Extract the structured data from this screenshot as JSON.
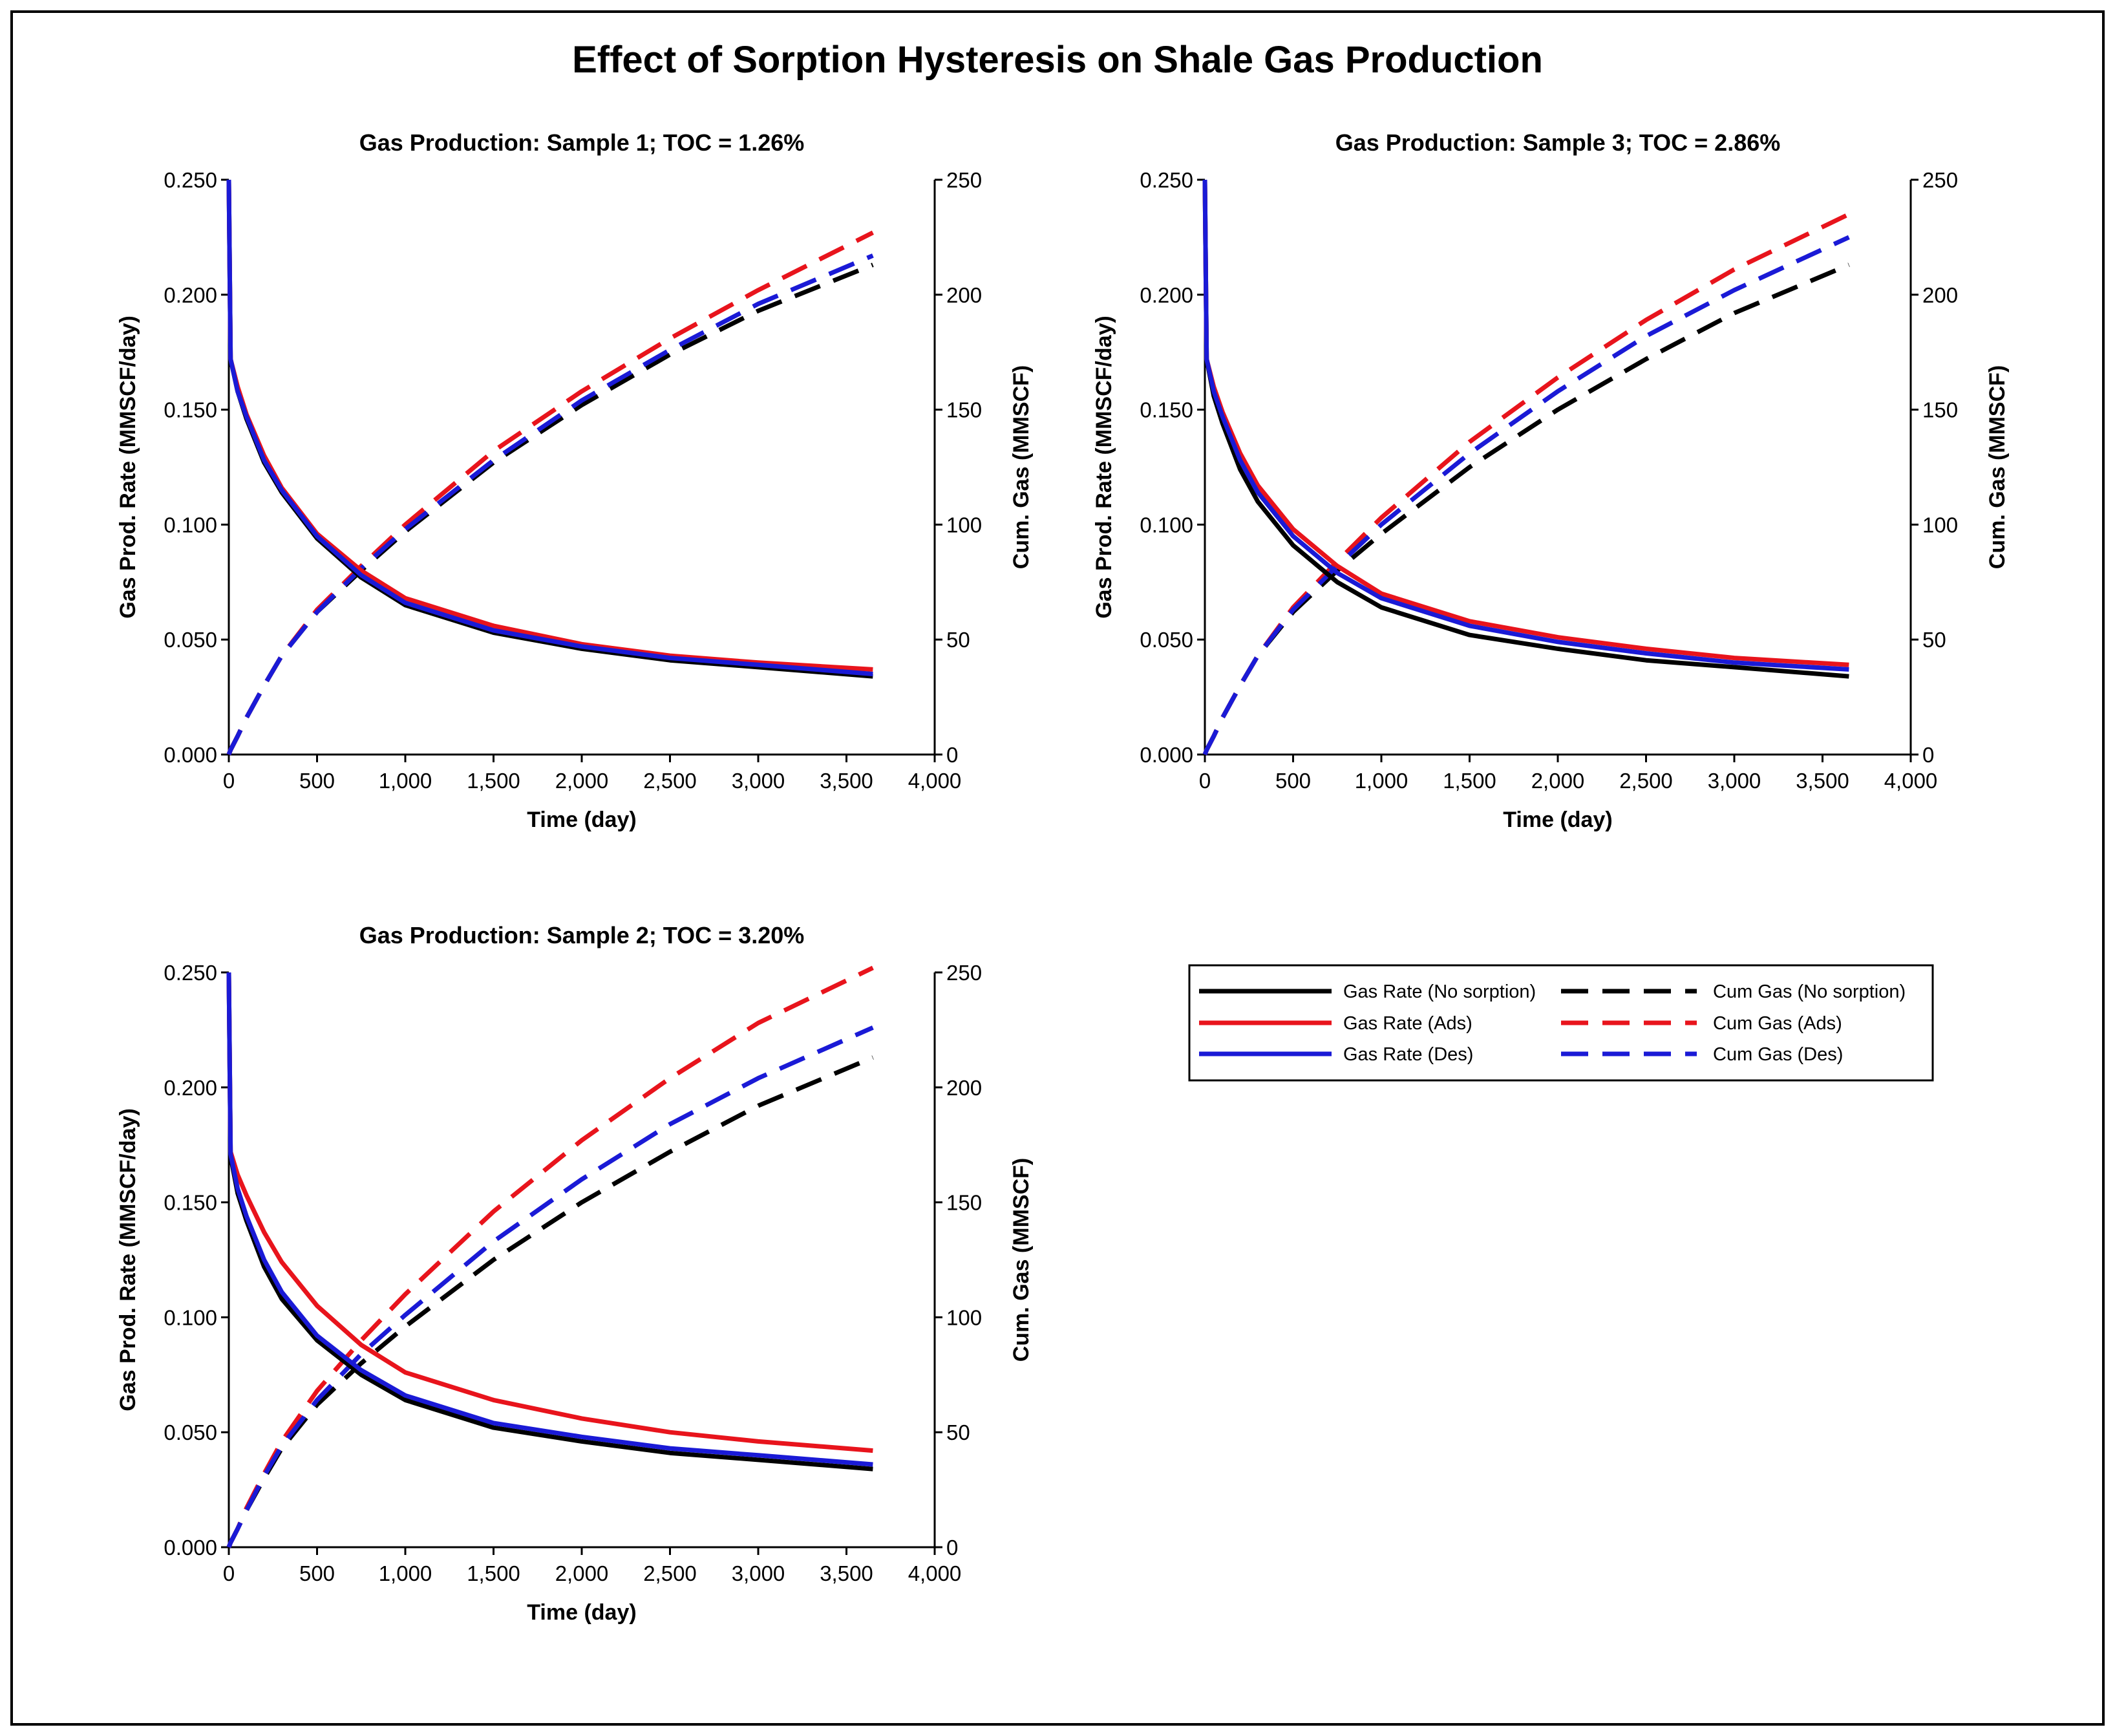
{
  "figure_title": "Effect of Sorption Hysteresis on Shale Gas Production",
  "colors": {
    "no_sorption": "#000000",
    "ads": "#e8141c",
    "des": "#1a1ad6"
  },
  "legend": {
    "items": [
      {
        "label": "Gas Rate (No sorption)",
        "color": "#000000",
        "dashed": false
      },
      {
        "label": "Cum Gas (No sorption)",
        "color": "#000000",
        "dashed": true
      },
      {
        "label": "Gas Rate (Ads)",
        "color": "#e8141c",
        "dashed": false
      },
      {
        "label": "Cum Gas (Ads)",
        "color": "#e8141c",
        "dashed": true
      },
      {
        "label": "Gas Rate (Des)",
        "color": "#1a1ad6",
        "dashed": false
      },
      {
        "label": "Cum Gas (Des)",
        "color": "#1a1ad6",
        "dashed": true
      }
    ]
  },
  "chart_data": [
    {
      "type": "line",
      "title": "Gas Production: Sample 1; TOC = 1.26%",
      "xlabel": "Time (day)",
      "ylabel": "Gas Prod. Rate (MMSCF/day)",
      "y2label": "Cum. Gas (MMSCF)",
      "xlim": [
        0,
        4000
      ],
      "ylim": [
        0,
        0.25
      ],
      "y2lim": [
        0,
        250
      ],
      "xticks": [
        "0",
        "500",
        "1,000",
        "1,500",
        "2,000",
        "2,500",
        "3,000",
        "3,500",
        "4,000"
      ],
      "yticks": [
        "0.000",
        "0.050",
        "0.100",
        "0.150",
        "0.200",
        "0.250"
      ],
      "y2ticks": [
        "0",
        "50",
        "100",
        "150",
        "200",
        "250"
      ],
      "x": [
        0,
        10,
        50,
        100,
        200,
        300,
        500,
        750,
        1000,
        1500,
        2000,
        2500,
        3000,
        3650
      ],
      "series": [
        {
          "name": "Gas Rate (No sorption)",
          "axis": "left",
          "style": "solid",
          "color": "#000000",
          "values": [
            0.25,
            0.172,
            0.158,
            0.146,
            0.127,
            0.114,
            0.094,
            0.077,
            0.065,
            0.053,
            0.046,
            0.041,
            0.038,
            0.034
          ]
        },
        {
          "name": "Gas Rate (Ads)",
          "axis": "left",
          "style": "solid",
          "color": "#e8141c",
          "values": [
            0.25,
            0.172,
            0.16,
            0.148,
            0.13,
            0.116,
            0.096,
            0.08,
            0.068,
            0.056,
            0.048,
            0.043,
            0.04,
            0.037
          ]
        },
        {
          "name": "Gas Rate (Des)",
          "axis": "left",
          "style": "solid",
          "color": "#1a1ad6",
          "values": [
            0.25,
            0.172,
            0.158,
            0.147,
            0.128,
            0.115,
            0.095,
            0.078,
            0.066,
            0.054,
            0.047,
            0.042,
            0.039,
            0.035
          ]
        },
        {
          "name": "Cum Gas (No sorption)",
          "axis": "right",
          "style": "dashed",
          "color": "#000000",
          "values": [
            0,
            2,
            8,
            16,
            30,
            43,
            62,
            80,
            97,
            127,
            152,
            174,
            193,
            213
          ]
        },
        {
          "name": "Cum Gas (Ads)",
          "axis": "right",
          "style": "dashed",
          "color": "#e8141c",
          "values": [
            0,
            2,
            8,
            16,
            30,
            43,
            63,
            82,
            100,
            132,
            158,
            181,
            202,
            227
          ]
        },
        {
          "name": "Cum Gas (Des)",
          "axis": "right",
          "style": "dashed",
          "color": "#1a1ad6",
          "values": [
            0,
            2,
            8,
            16,
            30,
            43,
            62,
            81,
            98,
            128,
            154,
            176,
            196,
            217
          ]
        }
      ]
    },
    {
      "type": "line",
      "title": "Gas Production: Sample 3; TOC = 2.86%",
      "xlabel": "Time (day)",
      "ylabel": "Gas Prod. Rate (MMSCF/day)",
      "y2label": "Cum. Gas (MMSCF)",
      "xlim": [
        0,
        4000
      ],
      "ylim": [
        0,
        0.25
      ],
      "y2lim": [
        0,
        250
      ],
      "xticks": [
        "0",
        "500",
        "1,000",
        "1,500",
        "2,000",
        "2,500",
        "3,000",
        "3,500",
        "4,000"
      ],
      "yticks": [
        "0.000",
        "0.050",
        "0.100",
        "0.150",
        "0.200",
        "0.250"
      ],
      "y2ticks": [
        "0",
        "50",
        "100",
        "150",
        "200",
        "250"
      ],
      "x": [
        0,
        10,
        50,
        100,
        200,
        300,
        500,
        750,
        1000,
        1500,
        2000,
        2500,
        3000,
        3650
      ],
      "series": [
        {
          "name": "Gas Rate (No sorption)",
          "axis": "left",
          "style": "solid",
          "color": "#000000",
          "values": [
            0.25,
            0.172,
            0.156,
            0.144,
            0.124,
            0.11,
            0.091,
            0.075,
            0.064,
            0.052,
            0.046,
            0.041,
            0.038,
            0.034
          ]
        },
        {
          "name": "Gas Rate (Ads)",
          "axis": "left",
          "style": "solid",
          "color": "#e8141c",
          "values": [
            0.25,
            0.172,
            0.16,
            0.149,
            0.131,
            0.117,
            0.098,
            0.082,
            0.07,
            0.058,
            0.051,
            0.046,
            0.042,
            0.039
          ]
        },
        {
          "name": "Gas Rate (Des)",
          "axis": "left",
          "style": "solid",
          "color": "#1a1ad6",
          "values": [
            0.25,
            0.172,
            0.158,
            0.147,
            0.128,
            0.114,
            0.095,
            0.079,
            0.068,
            0.056,
            0.049,
            0.044,
            0.04,
            0.037
          ]
        },
        {
          "name": "Cum Gas (No sorption)",
          "axis": "right",
          "style": "dashed",
          "color": "#000000",
          "values": [
            0,
            2,
            8,
            16,
            30,
            43,
            62,
            80,
            96,
            125,
            150,
            172,
            192,
            213
          ]
        },
        {
          "name": "Cum Gas (Ads)",
          "axis": "right",
          "style": "dashed",
          "color": "#e8141c",
          "values": [
            0,
            2,
            8,
            16,
            30,
            43,
            64,
            84,
            103,
            136,
            164,
            189,
            211,
            235
          ]
        },
        {
          "name": "Cum Gas (Des)",
          "axis": "right",
          "style": "dashed",
          "color": "#1a1ad6",
          "values": [
            0,
            2,
            8,
            16,
            30,
            43,
            63,
            82,
            100,
            131,
            158,
            182,
            202,
            225
          ]
        }
      ]
    },
    {
      "type": "line",
      "title": "Gas Production: Sample 2; TOC = 3.20%",
      "xlabel": "Time (day)",
      "ylabel": "Gas Prod. Rate (MMSCF/day)",
      "y2label": "Cum. Gas (MMSCF)",
      "xlim": [
        0,
        4000
      ],
      "ylim": [
        0,
        0.25
      ],
      "y2lim": [
        0,
        250
      ],
      "xticks": [
        "0",
        "500",
        "1,000",
        "1,500",
        "2,000",
        "2,500",
        "3,000",
        "3,500",
        "4,000"
      ],
      "yticks": [
        "0.000",
        "0.050",
        "0.100",
        "0.150",
        "0.200",
        "0.250"
      ],
      "y2ticks": [
        "0",
        "50",
        "100",
        "150",
        "200",
        "250"
      ],
      "x": [
        0,
        10,
        50,
        100,
        200,
        300,
        500,
        750,
        1000,
        1500,
        2000,
        2500,
        3000,
        3650
      ],
      "series": [
        {
          "name": "Gas Rate (No sorption)",
          "axis": "left",
          "style": "solid",
          "color": "#000000",
          "values": [
            0.25,
            0.17,
            0.154,
            0.142,
            0.122,
            0.108,
            0.09,
            0.075,
            0.064,
            0.052,
            0.046,
            0.041,
            0.038,
            0.034
          ]
        },
        {
          "name": "Gas Rate (Ads)",
          "axis": "left",
          "style": "solid",
          "color": "#e8141c",
          "values": [
            0.25,
            0.172,
            0.162,
            0.153,
            0.137,
            0.124,
            0.105,
            0.088,
            0.076,
            0.064,
            0.056,
            0.05,
            0.046,
            0.042
          ]
        },
        {
          "name": "Gas Rate (Des)",
          "axis": "left",
          "style": "solid",
          "color": "#1a1ad6",
          "values": [
            0.25,
            0.171,
            0.156,
            0.144,
            0.125,
            0.111,
            0.092,
            0.077,
            0.066,
            0.054,
            0.048,
            0.043,
            0.04,
            0.036
          ]
        },
        {
          "name": "Cum Gas (No sorption)",
          "axis": "right",
          "style": "dashed",
          "color": "#000000",
          "values": [
            0,
            2,
            8,
            16,
            30,
            43,
            62,
            80,
            96,
            125,
            150,
            172,
            192,
            213
          ]
        },
        {
          "name": "Cum Gas (Ads)",
          "axis": "right",
          "style": "dashed",
          "color": "#e8141c",
          "values": [
            0,
            2,
            8,
            17,
            32,
            46,
            68,
            90,
            110,
            146,
            177,
            204,
            228,
            252
          ]
        },
        {
          "name": "Cum Gas (Des)",
          "axis": "right",
          "style": "dashed",
          "color": "#1a1ad6",
          "values": [
            0,
            2,
            8,
            16,
            31,
            44,
            64,
            84,
            101,
            133,
            160,
            184,
            204,
            226
          ]
        }
      ]
    }
  ]
}
